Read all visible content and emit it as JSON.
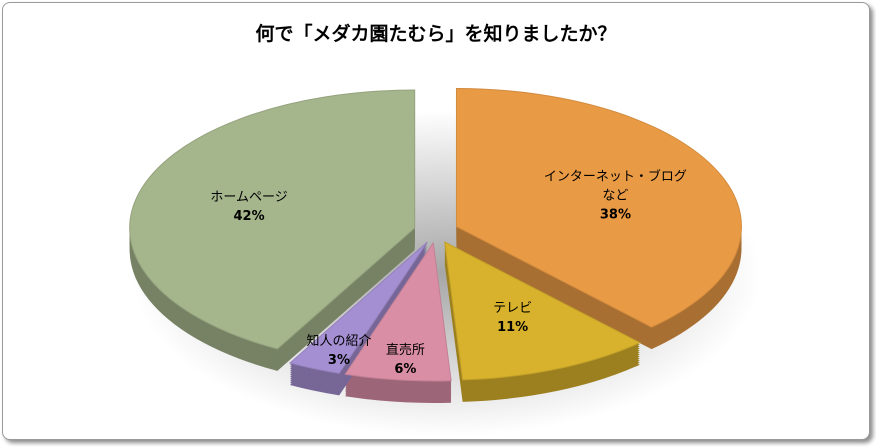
{
  "chart_data": {
    "type": "pie",
    "title": "何で「メダカ園たむら」を知りましたか？",
    "categories": [
      "インターネット・ブログ\nなど",
      "テレビ",
      "直売所",
      "知人の紹介",
      "ホームページ"
    ],
    "values": [
      38,
      11,
      6,
      3,
      42
    ],
    "value_labels": [
      "38%",
      "11%",
      "6%",
      "3%",
      "42%"
    ],
    "colors": [
      "#e99a45",
      "#d8b22c",
      "#d98ea6",
      "#a48fd2",
      "#a5b58c"
    ]
  }
}
